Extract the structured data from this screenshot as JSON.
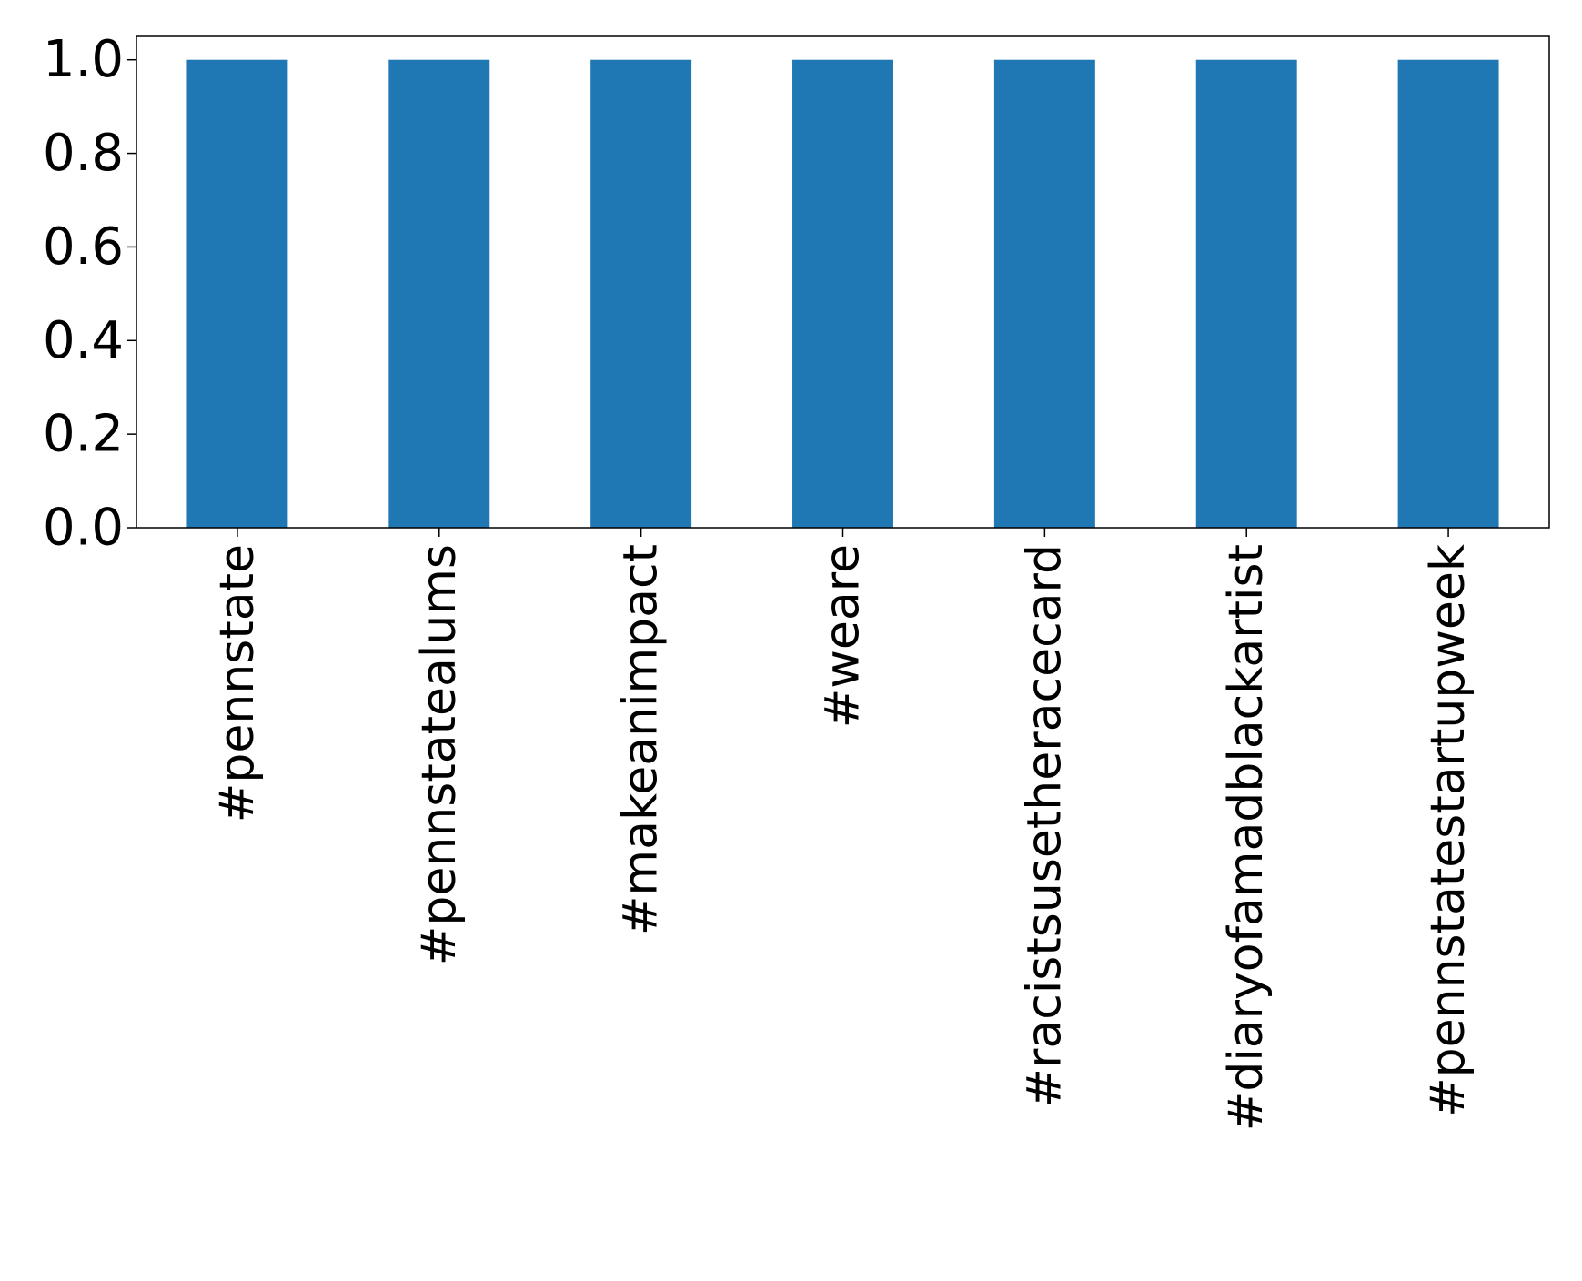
{
  "chart_data": {
    "type": "bar",
    "categories": [
      "#pennstate",
      "#pennstatealums",
      "#makeanimpact",
      "#weare",
      "#racistsusetheracecard",
      "#diaryofamadblackartist",
      "#pennstatestartupweek"
    ],
    "values": [
      1,
      1,
      1,
      1,
      1,
      1,
      1
    ],
    "title": "",
    "xlabel": "",
    "ylabel": "",
    "ylim": [
      0,
      1.05
    ],
    "yticks": [
      "0.0",
      "0.2",
      "0.4",
      "0.6",
      "0.8",
      "1.0"
    ],
    "grid": false,
    "legend": "none",
    "bar_color": "#1f77b4"
  }
}
